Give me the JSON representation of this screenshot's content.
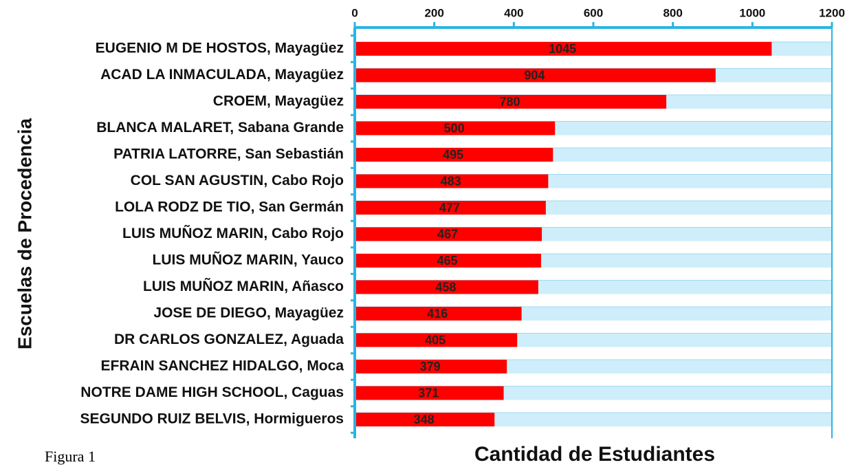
{
  "chart_data": {
    "type": "bar",
    "orientation": "horizontal",
    "ylabel": "Escuelas de Procedencia",
    "xlabel": "Cantidad de Estudiantes",
    "caption": "Figura 1",
    "categories": [
      "EUGENIO M DE HOSTOS, Mayagüez",
      "ACAD LA INMACULADA, Mayagüez",
      "CROEM, Mayagüez",
      "BLANCA MALARET, Sabana Grande",
      "PATRIA LATORRE, San Sebastián",
      "COL SAN AGUSTIN, Cabo Rojo",
      "LOLA RODZ DE TIO, San Germán",
      "LUIS MUÑOZ MARIN, Cabo Rojo",
      "LUIS MUÑOZ MARIN, Yauco",
      "LUIS MUÑOZ MARIN, Añasco",
      "JOSE DE DIEGO, Mayagüez",
      "DR CARLOS GONZALEZ, Aguada",
      "EFRAIN SANCHEZ HIDALGO, Moca",
      "NOTRE DAME HIGH SCHOOL, Caguas",
      "SEGUNDO RUIZ BELVIS, Hormigueros"
    ],
    "values": [
      1045,
      904,
      780,
      500,
      495,
      483,
      477,
      467,
      465,
      458,
      416,
      405,
      379,
      371,
      348
    ],
    "color": "#ff0000",
    "xlim": [
      0,
      1200
    ],
    "xticks": [
      0,
      200,
      400,
      600,
      800,
      1000,
      1200
    ]
  }
}
